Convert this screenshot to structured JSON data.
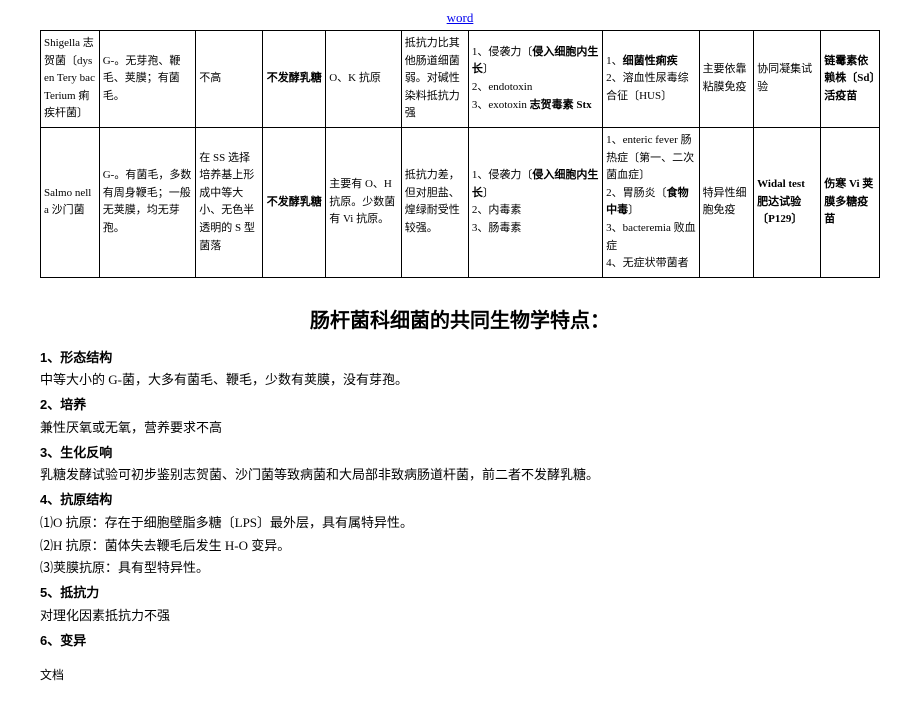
{
  "header_link": "word",
  "table": {
    "row1": {
      "name": "Shigella 志贺菌〔dysen Tery bac Terium 痢疾杆菌〕",
      "morph": "G-。无芽孢、鞭毛、荚膜；有菌毛。",
      "cult": "不高",
      "ferm": "不发酵乳糖",
      "ag": "O、K 抗原",
      "resist": "抵抗力比其他肠道细菌弱。对碱性染料抵抗力强",
      "path_l1": "1、侵袭力〔",
      "path_l1b": "侵入细胞内生长",
      "path_l1c": "〕",
      "path_l2": "2、endotoxin",
      "path_l3_a": "3、exotoxin  ",
      "path_l3_b": "志贺毒素 Stx",
      "dis_l1a": "1、",
      "dis_l1b": "细菌性痢疾",
      "dis_l2": "2、溶血性尿毒综合征〔HUS〕",
      "imm": "主要依靠粘膜免疫",
      "test": "协同凝集试验",
      "vac": "链霉素依赖株〔Sd〕活疫苗"
    },
    "row2": {
      "name": "Salmo nella 沙门菌",
      "morph": "G-。有菌毛，多数有周身鞭毛；一般无荚膜，均无芽孢。",
      "cult": "在 SS 选择培养基上形成中等大小、无色半透明的 S 型菌落",
      "ferm": "不发酵乳糖",
      "ag": "主要有 O、H 抗原。少数菌有 Vi 抗原。",
      "resist": "抵抗力差，但对胆盐、煌绿耐受性较强。",
      "path_l1": "1、侵袭力〔",
      "path_l1b": "侵入细胞内生长",
      "path_l1c": "〕",
      "path_l2": "2、内毒素",
      "path_l3": "3、肠毒素",
      "dis_l1": "1、enteric fever 肠热症〔第一、二次菌血症〕",
      "dis_l2a": "2、胃肠炎〔",
      "dis_l2b": "食物中毒",
      "dis_l2c": "〕",
      "dis_l3": "3、bacteremia 败血症",
      "dis_l4": "4、无症状带菌者",
      "imm": "特异性细胞免疫",
      "test": "Widal test 肥达试验〔P129〕",
      "vac": "伤寒 Vi 荚膜多糖疫苗"
    }
  },
  "section_title": "肠杆菌科细菌的共同生物学特点：",
  "body": {
    "h1": "1、形态结构",
    "p1": "中等大小的 G-菌，大多有菌毛、鞭毛，少数有荚膜，没有芽孢。",
    "h2": "2、培养",
    "p2": "兼性厌氧或无氧，营养要求不高",
    "h3": "3、生化反响",
    "p3": "乳糖发酵试验可初步鉴别志贺菌、沙门菌等致病菌和大局部非致病肠道杆菌，前二者不发酵乳糖。",
    "h4": "4、抗原结构",
    "p4a": "⑴O 抗原：存在于细胞壁脂多糖〔LPS〕最外层，具有属特异性。",
    "p4b": "⑵H 抗原：菌体失去鞭毛后发生 H-O 变异。",
    "p4c": "⑶荚膜抗原：具有型特异性。",
    "h5": "5、抵抗力",
    "p5": "对理化因素抵抗力不强",
    "h6": "6、变异"
  },
  "footer": "文档"
}
